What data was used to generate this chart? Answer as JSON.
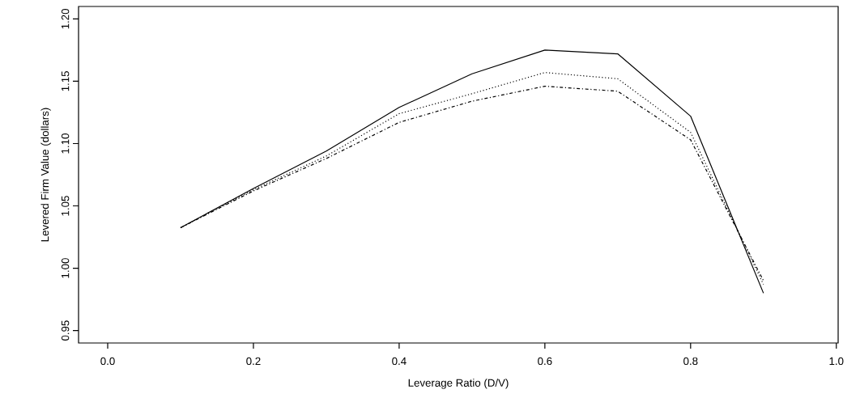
{
  "chart_data": {
    "type": "line",
    "xlabel": "Leverage Ratio (D/V)",
    "ylabel": "Levered Firm Value (dollars)",
    "x": [
      0.1,
      0.2,
      0.3,
      0.4,
      0.5,
      0.6,
      0.7,
      0.8,
      0.9
    ],
    "series": [
      {
        "color": "#000000",
        "line_style": "solid",
        "values": [
          1.0325,
          1.064,
          1.094,
          1.129,
          1.156,
          1.175,
          1.172,
          1.122,
          0.98
        ]
      },
      {
        "color": "#000000",
        "line_style": "dotted",
        "values": [
          1.0325,
          1.063,
          1.09,
          1.124,
          1.14,
          1.157,
          1.152,
          1.109,
          0.987
        ]
      },
      {
        "color": "#000000",
        "line_style": "dashdot",
        "values": [
          1.0325,
          1.062,
          1.088,
          1.117,
          1.134,
          1.146,
          1.142,
          1.103,
          0.99
        ]
      }
    ],
    "xlim": [
      -0.04,
      1.0025
    ],
    "ylim": [
      0.94,
      1.21
    ],
    "xticks": [
      {
        "value": 0,
        "label": "0.0"
      },
      {
        "value": 0.2,
        "label": "0.2"
      },
      {
        "value": 0.4,
        "label": "0.4"
      },
      {
        "value": 0.6,
        "label": "0.6"
      },
      {
        "value": 0.8,
        "label": "0.8"
      },
      {
        "value": 1,
        "label": "1.0"
      }
    ],
    "yticks": [
      {
        "value": 0.95,
        "label": "0.95"
      },
      {
        "value": 1.0,
        "label": "1.00"
      },
      {
        "value": 1.05,
        "label": "1.05"
      },
      {
        "value": 1.1,
        "label": "1.10"
      },
      {
        "value": 1.15,
        "label": "1.15"
      },
      {
        "value": 1.2,
        "label": "1.20"
      }
    ],
    "marker": "none"
  }
}
